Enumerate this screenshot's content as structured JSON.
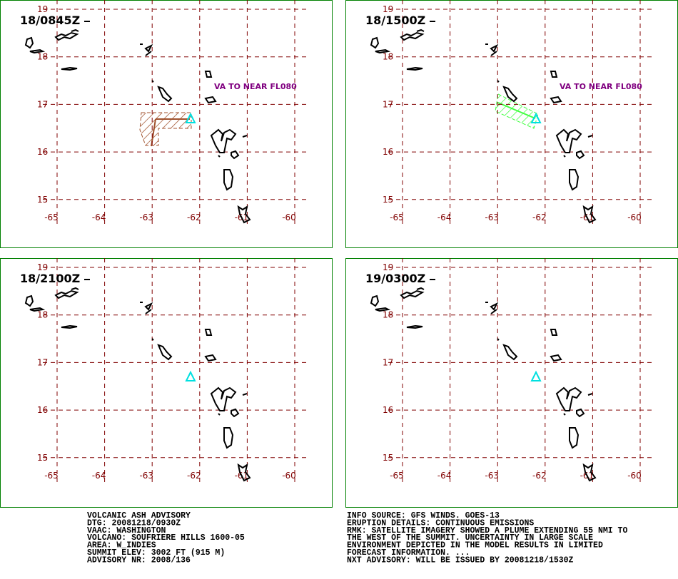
{
  "panels": [
    {
      "time": "18/0845Z",
      "annotation": "VA TO NEAR FL080"
    },
    {
      "time": "18/1500Z",
      "annotation": "VA TO NEAR FL080"
    },
    {
      "time": "18/2100Z"
    },
    {
      "time": "19/0300Z"
    }
  ],
  "lon_labels": [
    -65,
    -64,
    -63,
    -62,
    -61,
    -60
  ],
  "lat_labels": [
    19,
    18,
    17,
    16,
    15
  ],
  "footer": {
    "left": [
      "VOLCANIC ASH ADVISORY",
      "DTG: 20081218/0930Z",
      "VAAC: WASHINGTON",
      "VOLCANO: SOUFRIERE HILLS 1600-05",
      "AREA: W_INDIES",
      "SUMMIT ELEV: 3002 FT (915 M)",
      "ADVISORY NR: 2008/136"
    ],
    "right": [
      "INFO SOURCE: GFS WINDS. GOES-13",
      "ERUPTION DETAILS: CONTINUOUS EMISSIONS",
      "RMK: SATELLITE IMAGERY SHOWED A PLUME EXTENDING 55 NMI TO",
      "THE WEST OF THE SUMMIT. UNCERTAINTY IN LARGE SCALE",
      "ENVIRONMENT DEPICTED IN THE MODEL RESULTS IN LIMITED",
      "FORECAST INFORMATION. ...",
      "NXT ADVISORY: WILL BE ISSUED BY 20081218/1530Z"
    ]
  }
}
